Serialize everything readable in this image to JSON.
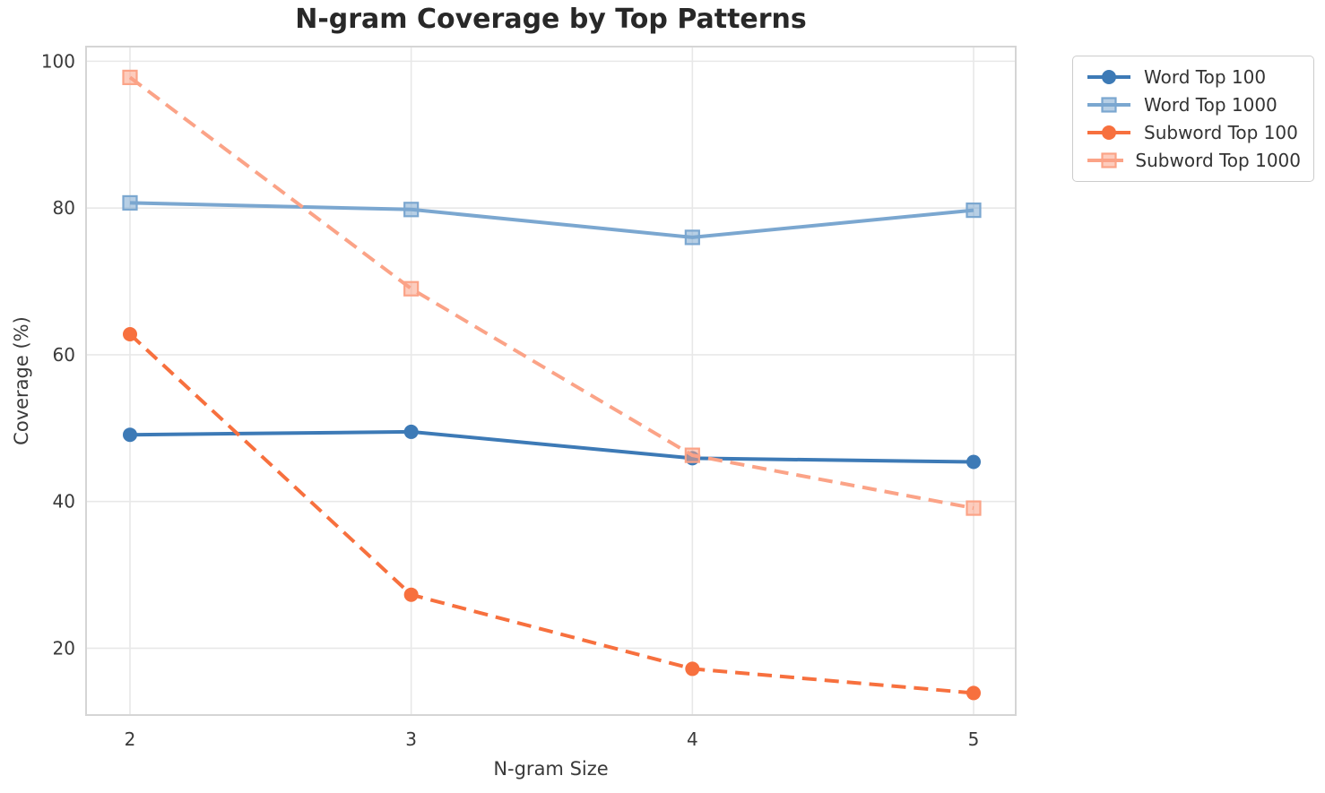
{
  "chart_data": {
    "type": "line",
    "title": "N-gram Coverage by Top Patterns",
    "xlabel": "N-gram Size",
    "ylabel": "Coverage (%)",
    "x": [
      2,
      3,
      4,
      5
    ],
    "x_tick_labels": [
      "2",
      "3",
      "4",
      "5"
    ],
    "y_ticks": [
      20,
      40,
      60,
      80,
      100
    ],
    "ylim": [
      10.9,
      102.0
    ],
    "grid": true,
    "legend_position": "upper right outside plot",
    "series": [
      {
        "name": "Word Top 100",
        "color": "#3d7ab6",
        "dash": "solid",
        "marker": "circle",
        "values": [
          49.1,
          49.5,
          45.9,
          45.4
        ]
      },
      {
        "name": "Word Top 1000",
        "color": "#7ba7d0",
        "dash": "solid",
        "marker": "square",
        "values": [
          80.7,
          79.8,
          76.0,
          79.7
        ]
      },
      {
        "name": "Subword Top 100",
        "color": "#f7703e",
        "dash": "dashed",
        "marker": "circle",
        "values": [
          62.8,
          27.3,
          17.2,
          13.9
        ]
      },
      {
        "name": "Subword Top 1000",
        "color": "#fba387",
        "dash": "dashed",
        "marker": "square",
        "values": [
          97.8,
          69.0,
          46.3,
          39.1
        ]
      }
    ]
  }
}
